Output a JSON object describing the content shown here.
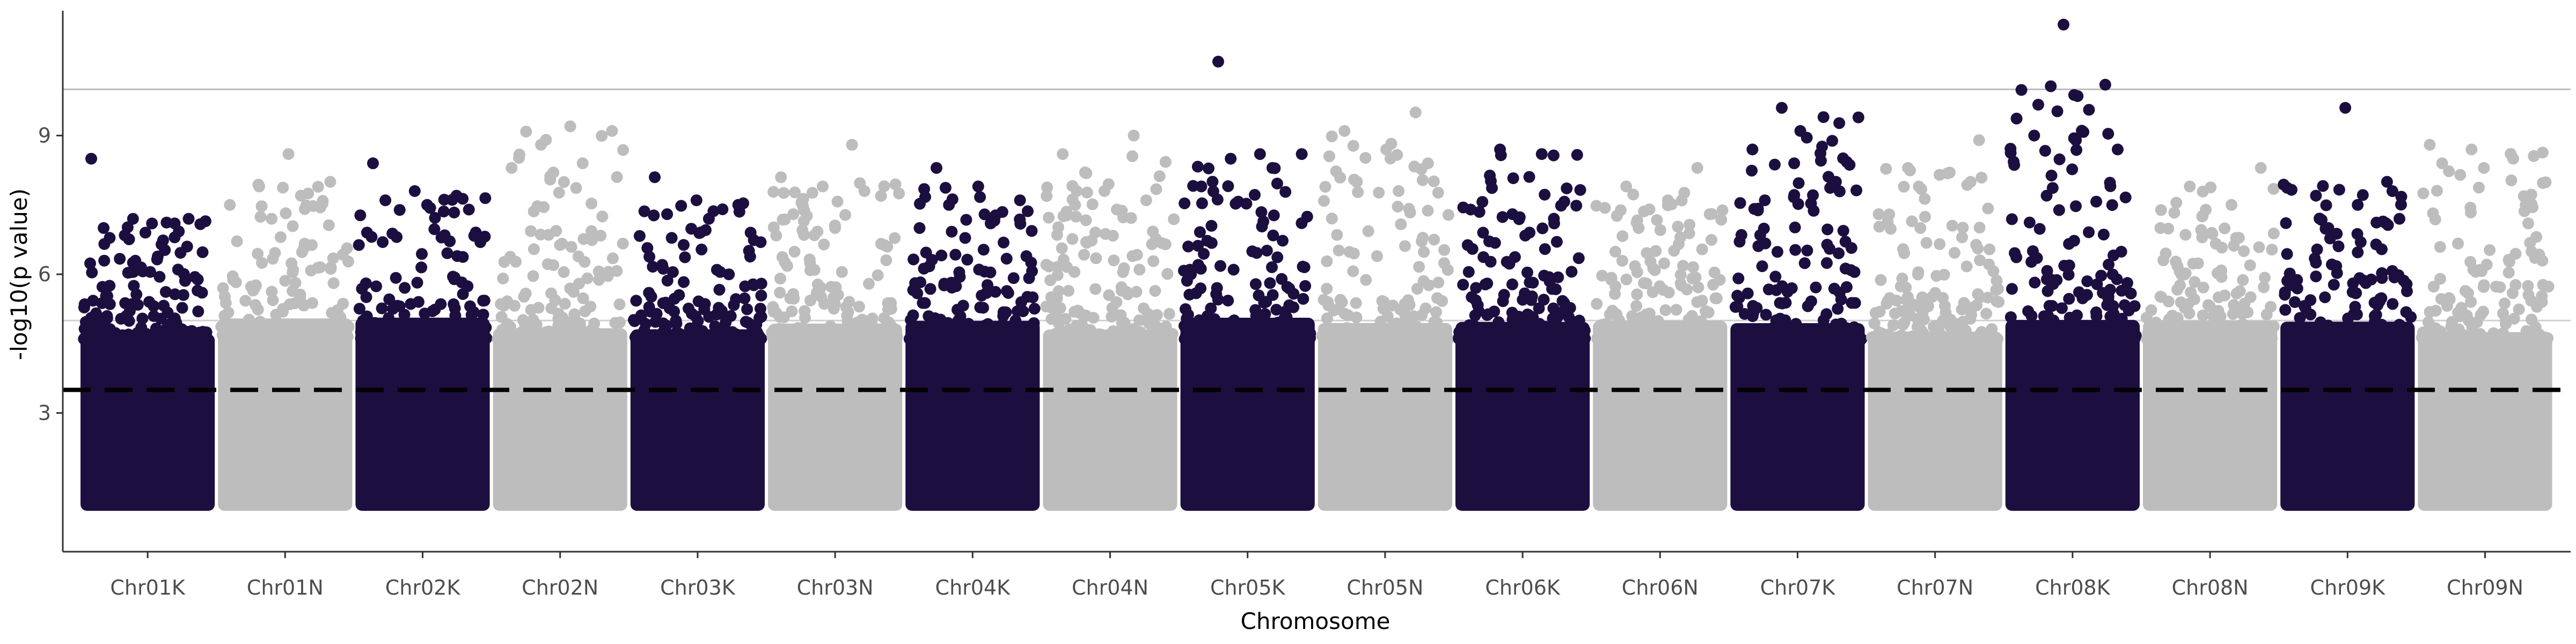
{
  "chart_data": {
    "type": "scatter",
    "title": "",
    "xlabel": "Chromosome",
    "ylabel": "-log10(p value)",
    "ylim": [
      0,
      11.7
    ],
    "yticks": [
      3,
      6,
      9
    ],
    "grid": "horizontal reference lines at 5 and 10",
    "reference_lines": [
      {
        "value": 10,
        "style": "solid",
        "color": "#bdbdbd"
      },
      {
        "value": 5,
        "style": "solid",
        "color": "#d0d0d0"
      },
      {
        "value": 3.5,
        "style": "dashed",
        "color": "#000000"
      }
    ],
    "colors": {
      "K": "#1c0f40",
      "N": "#bdbdbd"
    },
    "categories": [
      "Chr01K",
      "Chr01N",
      "Chr02K",
      "Chr02N",
      "Chr03K",
      "Chr03N",
      "Chr04K",
      "Chr04N",
      "Chr05K",
      "Chr05N",
      "Chr06K",
      "Chr06N",
      "Chr07K",
      "Chr07N",
      "Chr08K",
      "Chr08N",
      "Chr09K",
      "Chr09N"
    ],
    "min_plotted_value": 1.0,
    "series": [
      {
        "category": "Chr01K",
        "max_value": 8.5,
        "peaks": [
          8.5,
          7.2,
          7.1,
          7.0,
          6.9,
          6.6
        ]
      },
      {
        "category": "Chr01N",
        "max_value": 8.6,
        "peaks": [
          8.6,
          8.0,
          7.9,
          7.7,
          7.5,
          7.2
        ]
      },
      {
        "category": "Chr02K",
        "max_value": 8.4,
        "peaks": [
          8.4,
          7.8,
          7.7,
          7.6,
          7.5,
          7.4
        ]
      },
      {
        "category": "Chr02N",
        "max_value": 9.2,
        "peaks": [
          9.2,
          9.1,
          8.8,
          8.4,
          8.3,
          8.2
        ]
      },
      {
        "category": "Chr03K",
        "max_value": 8.1,
        "peaks": [
          8.1,
          7.6,
          7.5,
          7.3,
          7.2,
          6.9
        ]
      },
      {
        "category": "Chr03N",
        "max_value": 8.8,
        "peaks": [
          8.8,
          8.1,
          7.9,
          7.8,
          7.3,
          7.0
        ]
      },
      {
        "category": "Chr04K",
        "max_value": 8.3,
        "peaks": [
          8.3,
          7.9,
          7.6,
          7.5,
          7.1,
          7.0
        ]
      },
      {
        "category": "Chr04N",
        "max_value": 9.0,
        "peaks": [
          9.0,
          8.6,
          7.8,
          7.6,
          7.5,
          7.4
        ]
      },
      {
        "category": "Chr05K",
        "max_value": 10.6,
        "peaks": [
          10.6,
          8.6,
          8.6,
          8.5,
          8.3,
          7.9
        ]
      },
      {
        "category": "Chr05N",
        "max_value": 9.5,
        "peaks": [
          9.5,
          9.1,
          8.7,
          8.4,
          8.0,
          7.8
        ]
      },
      {
        "category": "Chr06K",
        "max_value": 8.7,
        "peaks": [
          8.7,
          8.6,
          7.4,
          7.3,
          7.1,
          6.9
        ]
      },
      {
        "category": "Chr06N",
        "max_value": 8.3,
        "peaks": [
          8.3,
          7.9,
          7.6,
          7.3,
          7.0,
          6.8
        ]
      },
      {
        "category": "Chr07K",
        "max_value": 9.6,
        "peaks": [
          9.6,
          9.4,
          8.7,
          8.4,
          8.0,
          7.6
        ]
      },
      {
        "category": "Chr07N",
        "max_value": 8.9,
        "peaks": [
          8.9,
          8.3,
          8.2,
          7.3,
          7.0,
          6.8
        ]
      },
      {
        "category": "Chr08K",
        "max_value": 11.4,
        "peaks": [
          11.4,
          10.1,
          9.0,
          8.9,
          8.7,
          7.7
        ]
      },
      {
        "category": "Chr08N",
        "max_value": 8.3,
        "peaks": [
          8.3,
          7.9,
          7.5,
          7.0,
          6.8,
          6.5
        ]
      },
      {
        "category": "Chr09K",
        "max_value": 9.6,
        "peaks": [
          9.6,
          8.0,
          7.7,
          7.5,
          7.2,
          7.0
        ]
      },
      {
        "category": "Chr09N",
        "max_value": 8.8,
        "peaks": [
          8.8,
          8.7,
          8.5,
          8.4,
          8.3,
          7.5
        ]
      }
    ]
  }
}
